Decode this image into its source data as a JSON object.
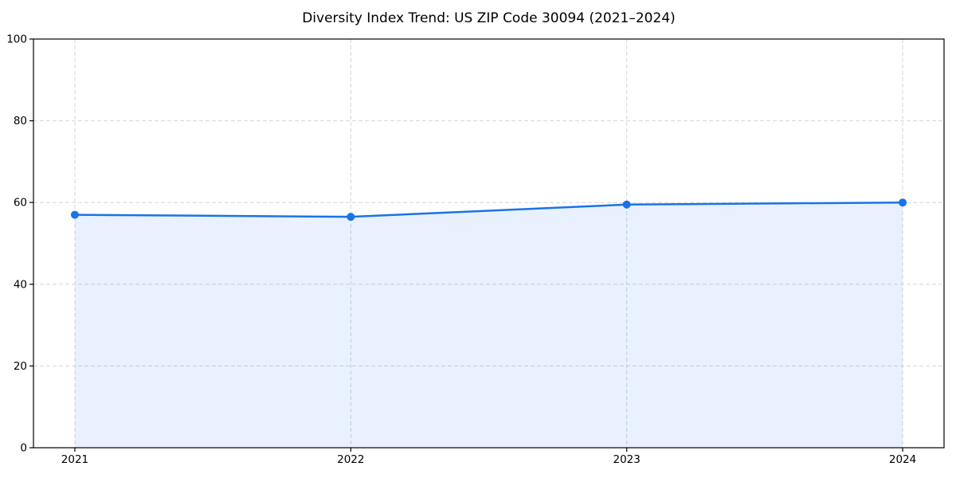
{
  "chart_data": {
    "type": "area",
    "title": "Diversity Index Trend: US ZIP Code 30094 (2021–2024)",
    "x": [
      2021,
      2022,
      2023,
      2024
    ],
    "categories": [
      "2021",
      "2022",
      "2023",
      "2024"
    ],
    "series": [
      {
        "name": "Diversity Index",
        "values": [
          57,
          56.5,
          59.5,
          60
        ]
      }
    ],
    "xlabel": "",
    "ylabel": "",
    "xlim": [
      2020.85,
      2024.15
    ],
    "ylim": [
      0,
      100
    ],
    "yticks": [
      0,
      20,
      40,
      60,
      80,
      100
    ],
    "ytick_labels": [
      "0",
      "20",
      "40",
      "60",
      "80",
      "100"
    ],
    "grid": true,
    "grid_style": "dashed",
    "legend": false,
    "marker": "circle",
    "colors": {
      "line": "#1a73e8",
      "marker": "#1a73e8",
      "fill": "#1a73e8",
      "fill_opacity": 0.1,
      "grid": "#d5d5d5",
      "spine": "#000000",
      "tick_label": "#000000",
      "title": "#000000",
      "background": "#ffffff"
    }
  }
}
